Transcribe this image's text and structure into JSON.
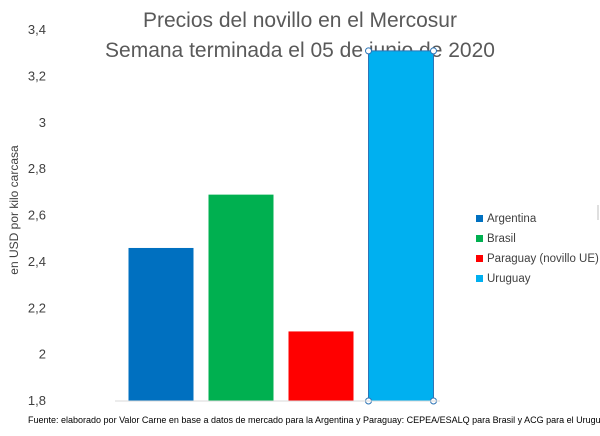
{
  "chart_data": {
    "type": "bar",
    "title": [
      "Precios del novillo en el Mercosur",
      "Semana terminada el 05 de junio de 2020"
    ],
    "ylabel": "en USD por kilo carcasa",
    "xlabel": "",
    "ylim": [
      1.8,
      3.4
    ],
    "yticks": [
      1.8,
      2.0,
      2.2,
      2.4,
      2.6,
      2.8,
      3.0,
      3.2,
      3.4
    ],
    "ytick_labels": [
      "1,8",
      "2",
      "2,2",
      "2,4",
      "2,6",
      "2,8",
      "3",
      "3,2",
      "3,4"
    ],
    "grid": false,
    "legend_position": "right",
    "categories": [
      "Argentina",
      "Brasil",
      "Paraguay (novillo UE)",
      "Uruguay"
    ],
    "values": [
      2.46,
      2.69,
      2.1,
      3.31
    ],
    "colors": [
      "#0070c0",
      "#00b050",
      "#ff0000",
      "#00b0f0"
    ],
    "selected_category": "Uruguay"
  },
  "source_note": "Fuente: elaborado por Valor Carne en base a datos de mercado para la Argentina y Paraguay: CEPEA/ESALQ para Brasil y ACG para el Uruguay"
}
